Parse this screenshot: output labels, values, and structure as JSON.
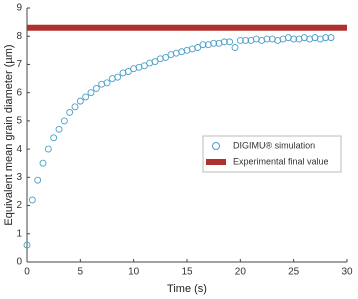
{
  "chart_data": {
    "type": "scatter",
    "xlabel": "Time (s)",
    "ylabel": "Equivalent mean grain diameter (µm)",
    "xlim": [
      0,
      30
    ],
    "xticks": [
      0,
      5,
      10,
      15,
      20,
      25,
      30
    ],
    "ylim": [
      0,
      9
    ],
    "yticks": [
      0,
      1,
      2,
      3,
      4,
      5,
      6,
      7,
      8,
      9
    ],
    "grid": false,
    "legend": "right",
    "series": [
      {
        "name": "DIGIMU® simulation",
        "color": "#4a9fc8",
        "type": "scatter",
        "x": [
          0,
          0.5,
          1,
          1.5,
          2,
          2.5,
          3,
          3.5,
          4,
          4.5,
          5,
          5.5,
          6,
          6.5,
          7,
          7.5,
          8,
          8.5,
          9,
          9.5,
          10,
          10.5,
          11,
          11.5,
          12,
          12.5,
          13,
          13.5,
          14,
          14.5,
          15,
          15.5,
          16,
          16.5,
          17,
          17.5,
          18,
          18.5,
          19,
          19.5,
          20,
          20.5,
          21,
          21.5,
          22,
          22.5,
          23,
          23.5,
          24,
          24.5,
          25,
          25.5,
          26,
          26.5,
          27,
          27.5,
          28,
          28.5
        ],
        "values": [
          0.6,
          2.2,
          2.9,
          3.5,
          4.0,
          4.4,
          4.7,
          5.0,
          5.3,
          5.5,
          5.7,
          5.85,
          6.0,
          6.15,
          6.3,
          6.35,
          6.5,
          6.55,
          6.7,
          6.75,
          6.85,
          6.9,
          6.95,
          7.05,
          7.1,
          7.2,
          7.25,
          7.35,
          7.4,
          7.45,
          7.5,
          7.55,
          7.6,
          7.7,
          7.7,
          7.75,
          7.75,
          7.8,
          7.8,
          7.6,
          7.85,
          7.85,
          7.85,
          7.9,
          7.85,
          7.9,
          7.9,
          7.85,
          7.9,
          7.95,
          7.9,
          7.9,
          7.95,
          7.9,
          7.95,
          7.9,
          7.95,
          7.95
        ]
      },
      {
        "name": "Experimental final value",
        "color": "#b03030",
        "type": "line",
        "x": [
          0,
          30
        ],
        "values": [
          8.3,
          8.3
        ]
      }
    ]
  }
}
